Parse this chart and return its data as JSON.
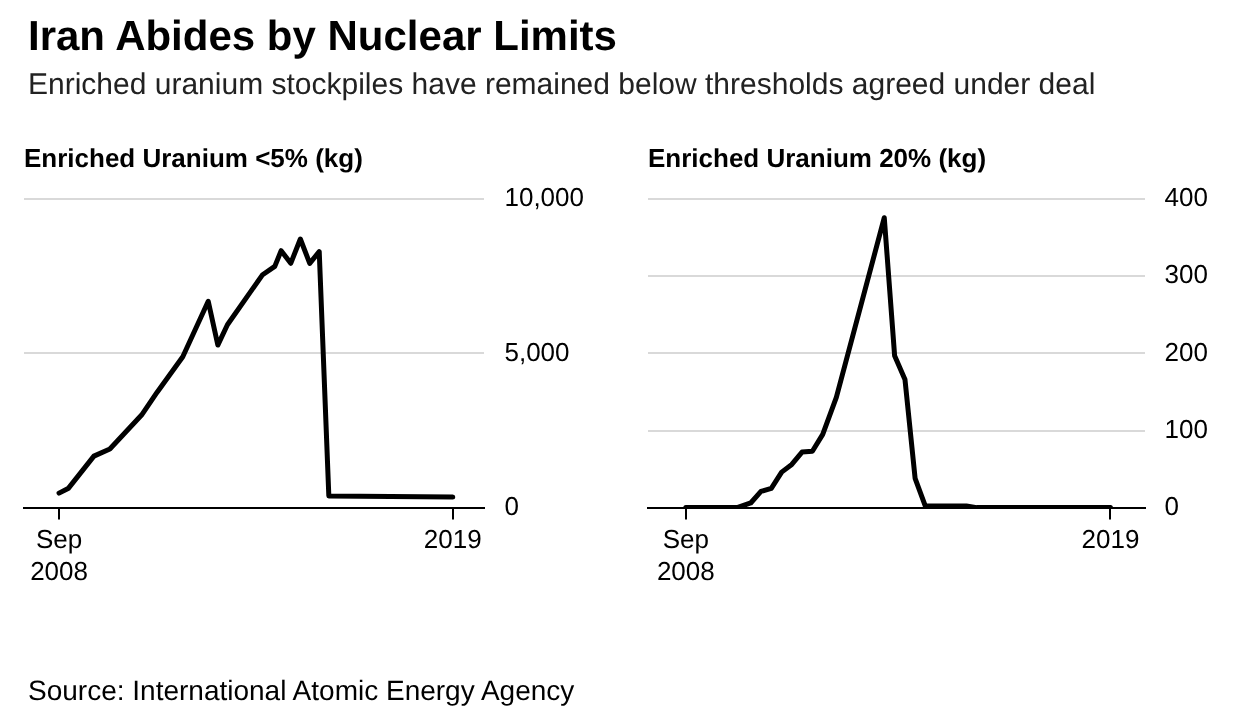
{
  "chart_data": [
    {
      "type": "other",
      "title": "Iran Abides by Nuclear Limits",
      "subtitle": "Enriched uranium stockpiles have remained below thresholds agreed under deal",
      "annotations": [
        "Source: International Atomic Energy Agency"
      ]
    },
    {
      "type": "line",
      "title": "Enriched Uranium <5% (kg)",
      "xlim": [
        "2007-10",
        "2019-11"
      ],
      "xticks": [
        {
          "value": "2008-09",
          "label": "Sep\n2008"
        },
        {
          "value": "2019-01",
          "label": "2019"
        }
      ],
      "ylim": [
        0,
        10000
      ],
      "yticks": [
        {
          "value": 0,
          "label": "0"
        },
        {
          "value": 5000,
          "label": "5,000"
        },
        {
          "value": 10000,
          "label": "10,000"
        }
      ],
      "grid": "y",
      "legend": false,
      "marker": "none",
      "line_style": "solid",
      "series": [
        {
          "color": "#000000",
          "x": [
            "2008-09",
            "2008-12",
            "2009-08",
            "2010-01",
            "2010-11",
            "2011-04",
            "2011-12",
            "2012-08",
            "2012-11",
            "2013-02",
            "2014-01",
            "2014-05",
            "2014-07",
            "2014-10",
            "2015-01",
            "2015-04",
            "2015-07",
            "2015-10",
            "2019-01"
          ],
          "values": [
            470,
            630,
            1670,
            1900,
            3000,
            3750,
            4890,
            6690,
            5270,
            5930,
            7540,
            7820,
            8330,
            7920,
            8710,
            7920,
            8300,
            380,
            340
          ]
        }
      ]
    },
    {
      "type": "line",
      "title": "Enriched Uranium 20% (kg)",
      "xlim": [
        "2007-10",
        "2019-11"
      ],
      "xticks": [
        {
          "value": "2008-09",
          "label": "Sep\n2008"
        },
        {
          "value": "2019-01",
          "label": "2019"
        }
      ],
      "ylim": [
        0,
        400
      ],
      "yticks": [
        0,
        100,
        200,
        300,
        400
      ],
      "grid": "y",
      "legend": false,
      "marker": "none",
      "line_style": "solid",
      "series": [
        {
          "color": "#000000",
          "x": [
            "2008-09",
            "2009-12",
            "2010-04",
            "2010-07",
            "2010-10",
            "2011-01",
            "2011-04",
            "2011-07",
            "2011-10",
            "2012-01",
            "2012-05",
            "2013-07",
            "2013-10",
            "2014-01",
            "2014-04",
            "2014-07",
            "2015-07",
            "2015-10",
            "2019-01"
          ],
          "values": [
            0,
            0,
            6,
            21,
            25,
            46,
            56,
            72,
            73,
            95,
            143,
            376,
            197,
            166,
            38,
            2,
            2,
            0,
            0
          ]
        }
      ]
    }
  ]
}
